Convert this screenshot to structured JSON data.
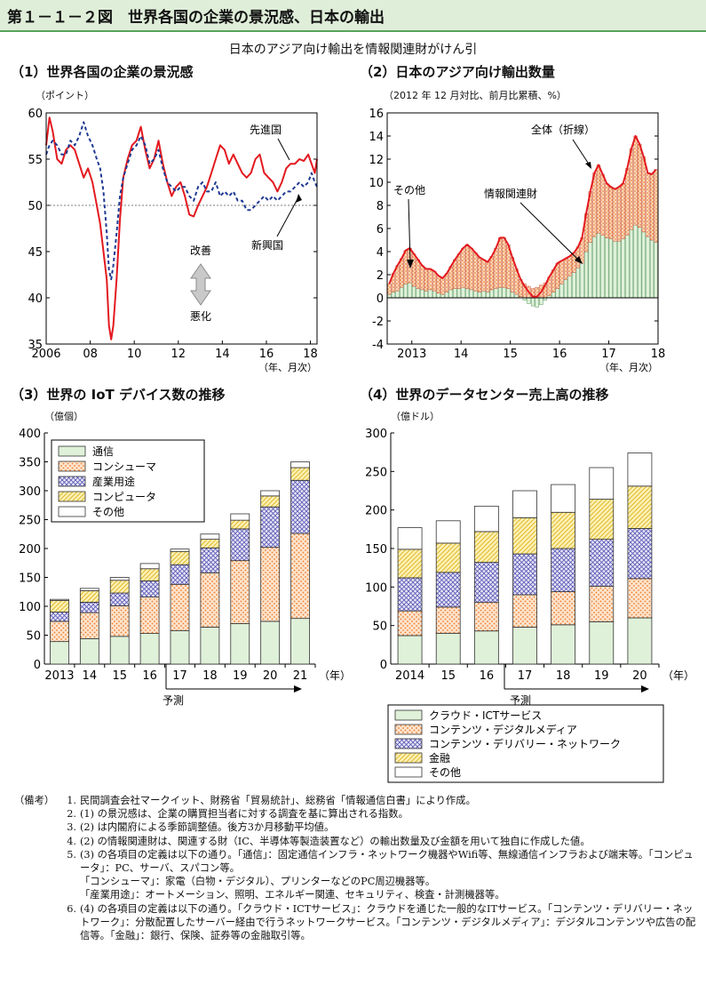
{
  "header": {
    "title": "第１－１－２図　世界各国の企業の景況感、日本の輸出"
  },
  "subtitle": "日本のアジア向け輸出を情報関連財がけん引",
  "panels": {
    "p1": {
      "title": "（1）世界各国の企業の景況感",
      "unit": "（ポイント）"
    },
    "p2": {
      "title": "（2）日本のアジア向け輸出数量",
      "unit": "（2012 年 12 月対比、前月比累積、%）"
    },
    "p3": {
      "title": "（3）世界の IoT デバイス数の推移",
      "unit": "（億個）"
    },
    "p4": {
      "title": "（4）世界のデータセンター売上高の推移",
      "unit": "（億ドル）"
    }
  },
  "chart_data": [
    {
      "id": "p1",
      "type": "line",
      "ylim": [
        35,
        60
      ],
      "yticks": [
        "35",
        "40",
        "45",
        "50",
        "55",
        "60"
      ],
      "xlim": [
        2006.0,
        2018.3
      ],
      "xticks": [
        {
          "v": 2006,
          "label": "2006"
        },
        {
          "v": 2008,
          "label": "08"
        },
        {
          "v": 2010,
          "label": "10"
        },
        {
          "v": 2012,
          "label": "12"
        },
        {
          "v": 2014,
          "label": "14"
        },
        {
          "v": 2016,
          "label": "16"
        },
        {
          "v": 2018,
          "label": "18"
        }
      ],
      "xunit": "（年、月次）",
      "reference_line": 50,
      "annotations": {
        "up": "改善",
        "down": "悪化"
      },
      "series": [
        {
          "name": "先進国",
          "color": "#e3191f",
          "style": "solid",
          "x": [
            2006.0,
            2006.15,
            2006.3,
            2006.5,
            2006.7,
            2006.9,
            2007.1,
            2007.3,
            2007.5,
            2007.7,
            2007.9,
            2008.1,
            2008.3,
            2008.45,
            2008.6,
            2008.75,
            2008.85,
            2008.95,
            2009.05,
            2009.2,
            2009.35,
            2009.5,
            2009.7,
            2009.9,
            2010.1,
            2010.3,
            2010.5,
            2010.7,
            2010.9,
            2011.1,
            2011.3,
            2011.5,
            2011.7,
            2011.9,
            2012.1,
            2012.3,
            2012.5,
            2012.7,
            2012.9,
            2013.1,
            2013.3,
            2013.5,
            2013.7,
            2013.9,
            2014.1,
            2014.3,
            2014.5,
            2014.7,
            2014.9,
            2015.1,
            2015.3,
            2015.5,
            2015.7,
            2015.9,
            2016.1,
            2016.3,
            2016.5,
            2016.7,
            2016.9,
            2017.1,
            2017.3,
            2017.5,
            2017.7,
            2017.9,
            2018.05,
            2018.2,
            2018.3
          ],
          "y": [
            56.5,
            59.5,
            58,
            55,
            54.5,
            56,
            56.5,
            56,
            54.5,
            53,
            54,
            52.5,
            50,
            48,
            45,
            42,
            37,
            35.5,
            37,
            42,
            48.5,
            53,
            55,
            56.5,
            57,
            58.5,
            56,
            54,
            55,
            57,
            54.5,
            52.5,
            51,
            52,
            52.5,
            51,
            49,
            48.8,
            50,
            51,
            52,
            53.5,
            55,
            56.5,
            56,
            54.5,
            55.5,
            54.5,
            53.5,
            53,
            53.5,
            55,
            55.5,
            53.5,
            53,
            52.5,
            51.5,
            52.5,
            54,
            54.5,
            54.5,
            55,
            54.8,
            55.5,
            54.5,
            53.5,
            55
          ]
        },
        {
          "name": "新興国",
          "color": "#1f3a93",
          "style": "dashed",
          "x": [
            2006.0,
            2006.15,
            2006.3,
            2006.5,
            2006.7,
            2006.9,
            2007.1,
            2007.3,
            2007.5,
            2007.7,
            2007.9,
            2008.1,
            2008.3,
            2008.45,
            2008.6,
            2008.75,
            2008.85,
            2008.95,
            2009.05,
            2009.2,
            2009.35,
            2009.5,
            2009.7,
            2009.9,
            2010.1,
            2010.3,
            2010.5,
            2010.7,
            2010.9,
            2011.1,
            2011.3,
            2011.5,
            2011.7,
            2011.9,
            2012.1,
            2012.3,
            2012.5,
            2012.7,
            2012.9,
            2013.1,
            2013.3,
            2013.5,
            2013.7,
            2013.9,
            2014.1,
            2014.3,
            2014.5,
            2014.7,
            2014.9,
            2015.1,
            2015.3,
            2015.5,
            2015.7,
            2015.9,
            2016.1,
            2016.3,
            2016.5,
            2016.7,
            2016.9,
            2017.1,
            2017.3,
            2017.5,
            2017.7,
            2017.9,
            2018.05,
            2018.2,
            2018.3
          ],
          "y": [
            55.5,
            56.5,
            57,
            56.5,
            55.5,
            55.5,
            57,
            56.5,
            57.5,
            59,
            57.5,
            56.5,
            55,
            54,
            51.5,
            47,
            43,
            42,
            43.5,
            47,
            51,
            53,
            54.5,
            56,
            56.5,
            57.5,
            56.5,
            54.5,
            55,
            56,
            54,
            52.5,
            52,
            51.5,
            52,
            52,
            51,
            50.5,
            52,
            52.5,
            51.5,
            51.5,
            52.5,
            51,
            51.5,
            51,
            51.5,
            50.5,
            50.5,
            49.5,
            49.5,
            50,
            50.5,
            51,
            50.5,
            51,
            50.5,
            51,
            51.5,
            51.5,
            52,
            52.5,
            52,
            52.5,
            53.5,
            52.5,
            52
          ]
        }
      ]
    },
    {
      "id": "p2",
      "type": "bar",
      "stacked": true,
      "ylim": [
        -4,
        16
      ],
      "yticks": [
        "-4",
        "-2",
        "0",
        "2",
        "4",
        "6",
        "8",
        "10",
        "12",
        "14",
        "16"
      ],
      "xticks": [
        {
          "i": 6,
          "label": "2013"
        },
        {
          "i": 18,
          "label": "14"
        },
        {
          "i": 30,
          "label": "15"
        },
        {
          "i": 42,
          "label": "16"
        },
        {
          "i": 54,
          "label": "17"
        },
        {
          "i": 66,
          "label": "18"
        }
      ],
      "xunit": "（年、月次）",
      "annotations": {
        "total": "全体（折線）",
        "other": "その他",
        "info": "情報関連財"
      },
      "series": [
        {
          "name": "情報関連財",
          "fill": "#dff1d9",
          "values": [
            0.3,
            0.5,
            0.6,
            0.9,
            1.2,
            1.3,
            1.0,
            0.8,
            0.7,
            0.6,
            0.7,
            0.6,
            0.4,
            0.3,
            0.5,
            0.7,
            0.8,
            0.8,
            0.9,
            0.8,
            0.7,
            0.6,
            0.5,
            0.6,
            0.5,
            0.7,
            0.8,
            0.9,
            0.9,
            0.8,
            0.5,
            0.3,
            0.1,
            -0.2,
            -0.5,
            -0.7,
            -0.8,
            -0.6,
            -0.2,
            0.2,
            0.5,
            0.8,
            1.2,
            1.6,
            1.9,
            2.2,
            2.6,
            3.0,
            4.0,
            4.8,
            5.3,
            5.6,
            5.4,
            5.2,
            5.1,
            4.9,
            4.9,
            5.1,
            5.4,
            5.9,
            6.3,
            6.1,
            5.7,
            5.3,
            5.0,
            4.8
          ]
        },
        {
          "name": "その他",
          "fill": "#f7c89d",
          "values": [
            0.9,
            1.6,
            2.2,
            2.5,
            2.9,
            3.0,
            2.8,
            2.5,
            2.1,
            1.9,
            1.8,
            1.7,
            1.5,
            1.4,
            1.6,
            2.0,
            2.5,
            3.0,
            3.4,
            3.8,
            3.6,
            3.3,
            3.0,
            2.7,
            2.6,
            2.9,
            3.5,
            4.3,
            4.3,
            3.8,
            3.0,
            2.2,
            1.5,
            1.2,
            1.0,
            0.8,
            0.9,
            1.1,
            1.3,
            1.6,
            1.9,
            2.2,
            2.0,
            1.8,
            1.7,
            1.7,
            1.8,
            2.2,
            3.3,
            4.4,
            5.5,
            5.9,
            5.3,
            4.7,
            4.5,
            4.5,
            4.7,
            4.8,
            5.8,
            7.0,
            7.7,
            7.2,
            6.5,
            5.5,
            5.7,
            6.3
          ]
        }
      ],
      "total": [
        1.2,
        2.1,
        2.8,
        3.4,
        4.1,
        4.3,
        3.8,
        3.3,
        2.8,
        2.5,
        2.5,
        2.3,
        1.9,
        1.7,
        2.1,
        2.7,
        3.3,
        3.8,
        4.3,
        4.6,
        4.3,
        3.9,
        3.5,
        3.3,
        3.1,
        3.6,
        4.3,
        5.2,
        5.2,
        4.6,
        3.5,
        2.5,
        1.6,
        1.0,
        0.5,
        0.1,
        0.1,
        0.5,
        1.1,
        1.8,
        2.4,
        3.0,
        3.2,
        3.4,
        3.6,
        3.9,
        4.4,
        5.2,
        7.3,
        9.2,
        10.8,
        11.5,
        10.7,
        9.9,
        9.6,
        9.4,
        9.6,
        9.9,
        11.2,
        12.9,
        14.0,
        13.3,
        12.2,
        10.8,
        10.7,
        11.1
      ]
    },
    {
      "id": "p3",
      "type": "bar",
      "stacked": true,
      "ylim": [
        0,
        400
      ],
      "yticks": [
        "0",
        "50",
        "100",
        "150",
        "200",
        "250",
        "300",
        "350",
        "400"
      ],
      "categories": [
        "2013",
        "14",
        "15",
        "16",
        "17",
        "18",
        "19",
        "20",
        "21"
      ],
      "xunit": "（年）",
      "forecast_label": "予測",
      "series": [
        {
          "name": "通信",
          "values": [
            39,
            44,
            48,
            53,
            58,
            64,
            70,
            74,
            79
          ]
        },
        {
          "name": "コンシューマ",
          "values": [
            35,
            45,
            53,
            63,
            80,
            94,
            109,
            128,
            147
          ]
        },
        {
          "name": "産業用途",
          "values": [
            16,
            18,
            22,
            28,
            34,
            43,
            55,
            70,
            92
          ]
        },
        {
          "name": "コンピュータ",
          "values": [
            20,
            20,
            22,
            21,
            23,
            15,
            15,
            19,
            22
          ]
        },
        {
          "name": "その他",
          "values": [
            2,
            4,
            5,
            9,
            4,
            9,
            11,
            9,
            10
          ]
        }
      ]
    },
    {
      "id": "p4",
      "type": "bar",
      "stacked": true,
      "ylim": [
        0,
        300
      ],
      "yticks": [
        "0",
        "50",
        "100",
        "150",
        "200",
        "250",
        "300"
      ],
      "categories": [
        "2014",
        "15",
        "16",
        "17",
        "18",
        "19",
        "20"
      ],
      "xunit": "（年）",
      "forecast_label": "予測",
      "series": [
        {
          "name": "クラウド・ICTサービス",
          "values": [
            37,
            40,
            43,
            48,
            51,
            55,
            60
          ]
        },
        {
          "name": "コンテンツ・デジタルメディア",
          "values": [
            32,
            34,
            37,
            42,
            43,
            46,
            51
          ]
        },
        {
          "name": "コンテンツ・デリバリー・ネットワーク",
          "values": [
            43,
            45,
            52,
            53,
            56,
            61,
            65
          ]
        },
        {
          "name": "金融",
          "values": [
            37,
            38,
            40,
            47,
            47,
            52,
            55
          ]
        },
        {
          "name": "その他",
          "values": [
            28,
            29,
            33,
            35,
            36,
            41,
            43
          ]
        }
      ]
    }
  ],
  "notes": {
    "head": "（備考）",
    "items": [
      {
        "num": "1.",
        "text": "民間調査会社マークイット、財務省「貿易統計」、総務省「情報通信白書」により作成。"
      },
      {
        "num": "2.",
        "text": "(1) の景況感は、企業の購買担当者に対する調査を基に算出される指数。"
      },
      {
        "num": "3.",
        "text": "(2) は内閣府による季節調整値。後方3か月移動平均値。"
      },
      {
        "num": "4.",
        "text": "(2) の情報関連財は、関連する財（IC、半導体等製造装置など）の輸出数量及び金額を用いて独自に作成した値。"
      },
      {
        "num": "5.",
        "text": "(3) の各項目の定義は以下の通り。「通信」：固定通信インフラ・ネットワーク機器やWifi等、無線通信インフラおよび端末等。「コンピュータ」：PC、サーバ、スパコン等。"
      },
      {
        "num": "",
        "text": "「コンシューマ」：家電（白物・デジタル）、プリンターなどのPC周辺機器等。"
      },
      {
        "num": "",
        "text": "「産業用途」：オートメーション、照明、エネルギー関連、セキュリティ、検査・計測機器等。"
      },
      {
        "num": "6.",
        "text": "(4) の各項目の定義は以下の通り。「クラウド・ICTサービス」：クラウドを通じた一般的なITサービス。「コンテンツ・デリバリー・ネットワーク」：分散配置したサーバー経由で行うネットワークサービス。「コンテンツ・デジタルメディア」：デジタルコンテンツや広告の配信等。「金融」：銀行、保険、証券等の金融取引等。"
      }
    ]
  }
}
